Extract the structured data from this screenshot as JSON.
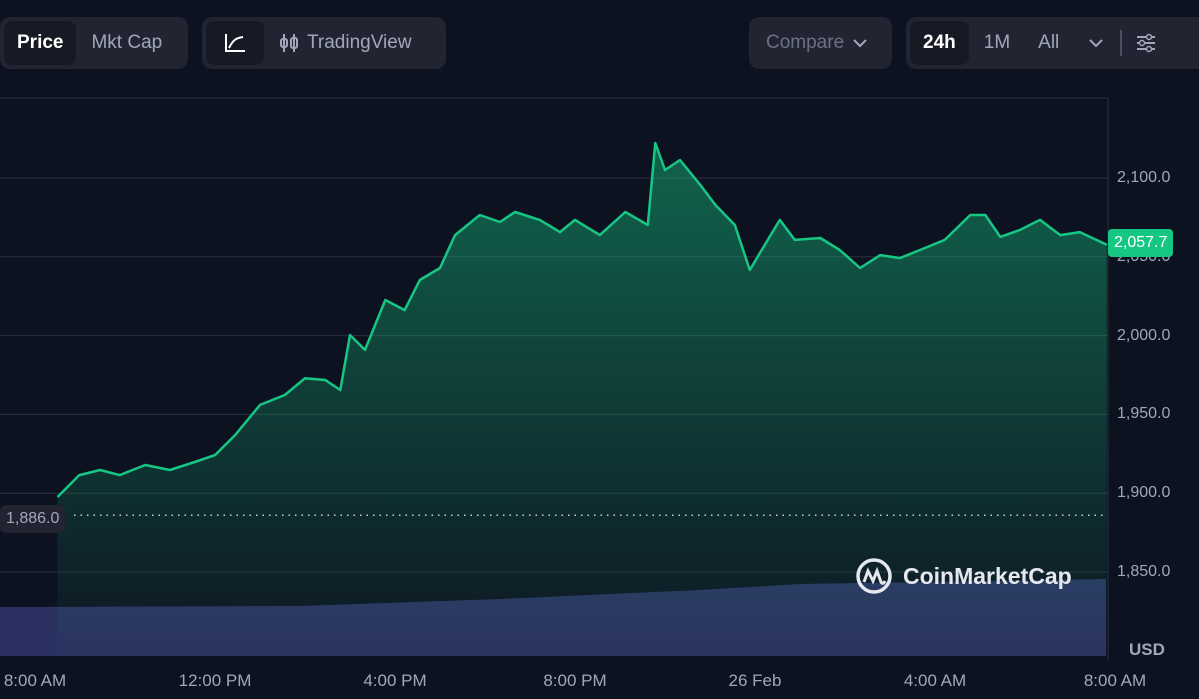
{
  "toolbar": {
    "left_tabs": [
      "Price",
      "Mkt Cap"
    ],
    "active_tab": "Price",
    "chart_type_line_icon": "line-chart-icon",
    "tradingview_label": "TradingView",
    "tradingview_icon": "candlestick-icon",
    "compare_label": "Compare",
    "ranges": [
      "24h",
      "1M",
      "All"
    ],
    "active_range": "24h",
    "settings_icon": "sliders-icon"
  },
  "watermark": "CoinMarketCap",
  "currency": "USD",
  "colors": {
    "line": "#16c784",
    "volume": "#2b3160",
    "background": "#0d1220"
  },
  "chart_data": {
    "type": "area",
    "ylabel": "",
    "xlabel": "",
    "ylim": [
      1825,
      2140
    ],
    "yticks": [
      "2,100.0",
      "2,050.0",
      "2,000.0",
      "1,950.0",
      "1,900.0",
      "1,850.0"
    ],
    "ytick_values": [
      2100,
      2050,
      2000,
      1950,
      1900,
      1850
    ],
    "xticks": [
      "8:00 AM",
      "12:00 PM",
      "4:00 PM",
      "8:00 PM",
      "26 Feb",
      "4:00 AM",
      "8:00 AM"
    ],
    "xtick_times": [
      "25 08:00",
      "25 12:00",
      "25 16:00",
      "25 20:00",
      "26 00:00",
      "26 04:00",
      "26 08:00"
    ],
    "grid": true,
    "last_price": "2,057.7",
    "open_price": "1,886.0",
    "open_price_value": 1886.0,
    "series": [
      {
        "points": [
          [
            "25 08:30",
            1897.6
          ],
          [
            "25 08:59",
            1911.5
          ],
          [
            "25 09:27",
            1914.7
          ],
          [
            "25 09:53",
            1911.5
          ],
          [
            "25 10:27",
            1917.9
          ],
          [
            "25 11:00",
            1914.7
          ],
          [
            "25 11:33",
            1919.8
          ],
          [
            "25 12:00",
            1924.2
          ],
          [
            "25 12:27",
            1936.9
          ],
          [
            "25 13:00",
            1956.0
          ],
          [
            "25 13:33",
            1962.3
          ],
          [
            "25 14:00",
            1973.0
          ],
          [
            "25 14:27",
            1971.8
          ],
          [
            "25 14:47",
            1965.5
          ],
          [
            "25 15:00",
            2000.4
          ],
          [
            "25 15:20",
            1990.9
          ],
          [
            "25 15:47",
            2022.6
          ],
          [
            "25 16:13",
            2016.2
          ],
          [
            "25 16:33",
            2035.3
          ],
          [
            "25 17:00",
            2042.9
          ],
          [
            "25 17:20",
            2063.8
          ],
          [
            "25 17:53",
            2076.5
          ],
          [
            "25 18:20",
            2072.1
          ],
          [
            "25 18:40",
            2078.4
          ],
          [
            "25 19:13",
            2073.4
          ],
          [
            "25 19:40",
            2065.7
          ],
          [
            "25 20:00",
            2073.4
          ],
          [
            "25 20:33",
            2063.8
          ],
          [
            "25 21:07",
            2078.4
          ],
          [
            "25 21:37",
            2070.2
          ],
          [
            "25 21:47",
            2122.2
          ],
          [
            "25 22:00",
            2105.1
          ],
          [
            "25 22:20",
            2111.4
          ],
          [
            "25 22:47",
            2095.6
          ],
          [
            "25 23:07",
            2082.9
          ],
          [
            "25 23:33",
            2070.2
          ],
          [
            "25 23:53",
            2041.6
          ],
          [
            "26 00:13",
            2057.5
          ],
          [
            "26 00:33",
            2073.4
          ],
          [
            "26 00:53",
            2060.7
          ],
          [
            "26 01:27",
            2061.9
          ],
          [
            "26 01:53",
            2054.3
          ],
          [
            "26 02:20",
            2042.9
          ],
          [
            "26 02:47",
            2051.1
          ],
          [
            "26 03:13",
            2049.2
          ],
          [
            "26 03:40",
            2054.3
          ],
          [
            "26 04:13",
            2060.7
          ],
          [
            "26 04:47",
            2076.5
          ],
          [
            "26 05:07",
            2076.5
          ],
          [
            "26 05:27",
            2062.6
          ],
          [
            "26 05:53",
            2067.0
          ],
          [
            "26 06:20",
            2073.4
          ],
          [
            "26 06:47",
            2063.8
          ],
          [
            "26 07:13",
            2065.7
          ],
          [
            "26 07:49",
            2057.7
          ]
        ]
      }
    ]
  }
}
